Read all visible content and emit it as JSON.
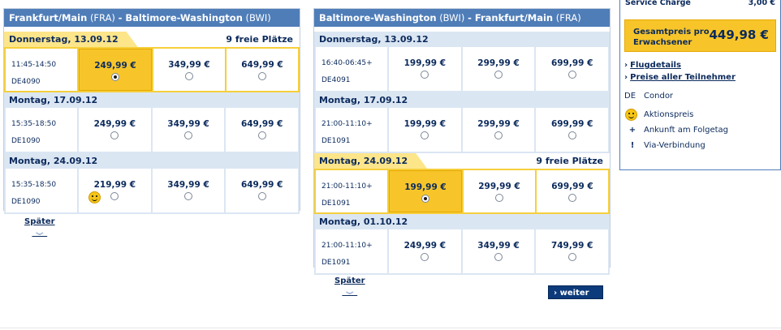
{
  "outbound": {
    "from": "Frankfurt/Main",
    "from_code": "(FRA)",
    "to": "Baltimore-Washington",
    "to_code": "(BWI)",
    "days": [
      {
        "date": "Donnerstag, 13.09.12",
        "seats": "9 freie Plätze",
        "selected": true,
        "time": "11:45-14:50",
        "flight": "DE4090",
        "prices": [
          "249,99 €",
          "349,99 €",
          "649,99 €"
        ],
        "selected_price": 0
      },
      {
        "date": "Montag, 17.09.12",
        "seats": "",
        "selected": false,
        "time": "15:35-18:50",
        "flight": "DE1090",
        "prices": [
          "249,99 €",
          "349,99 €",
          "649,99 €"
        ]
      },
      {
        "date": "Montag, 24.09.12",
        "seats": "",
        "selected": false,
        "time": "15:35-18:50",
        "flight": "DE1090",
        "prices": [
          "219,99 €",
          "349,99 €",
          "649,99 €"
        ],
        "promo": true
      }
    ],
    "later_label": "Später"
  },
  "return": {
    "from": "Baltimore-Washington",
    "from_code": "(BWI)",
    "to": "Frankfurt/Main",
    "to_code": "(FRA)",
    "days": [
      {
        "date": "Donnerstag, 13.09.12",
        "seats": "",
        "selected": false,
        "time": "16:40-06:45+",
        "flight": "DE4091",
        "prices": [
          "199,99 €",
          "299,99 €",
          "699,99 €"
        ]
      },
      {
        "date": "Montag, 17.09.12",
        "seats": "",
        "selected": false,
        "time": "21:00-11:10+",
        "flight": "DE1091",
        "prices": [
          "199,99 €",
          "299,99 €",
          "699,99 €"
        ]
      },
      {
        "date": "Montag, 24.09.12",
        "seats": "9 freie Plätze",
        "selected": true,
        "time": "21:00-11:10+",
        "flight": "DE1091",
        "prices": [
          "199,99 €",
          "299,99 €",
          "699,99 €"
        ],
        "selected_price": 0
      },
      {
        "date": "Montag, 01.10.12",
        "seats": "",
        "selected": false,
        "time": "21:00-11:10+",
        "flight": "DE1091",
        "prices": [
          "249,99 €",
          "349,99 €",
          "749,99 €"
        ]
      }
    ],
    "later_label": "Später",
    "next_label": "weiter"
  },
  "sidebar": {
    "service_charge_label": "Service Charge",
    "service_charge_value": "3,00 €",
    "total_label": "Gesamtpreis pro Erwachsener",
    "total_price": "449,98 €",
    "links": [
      "Flugdetails",
      "Preise aller Teilnehmer"
    ],
    "airline_code": "DE",
    "airline_name": "Condor",
    "legend": [
      {
        "icon": "smiley-icon",
        "text": "Aktionspreis"
      },
      {
        "icon": "plus-icon",
        "symbol": "+",
        "text": "Ankunft am Folgetag"
      },
      {
        "icon": "exclamation-icon",
        "symbol": "!",
        "text": "Via-Verbindung"
      }
    ]
  },
  "colors": {
    "header_blue": "#4f7db8",
    "selected_yellow": "#f7c52a",
    "row_bg": "#dbe6f3",
    "text_navy": "#0b2a5c"
  }
}
